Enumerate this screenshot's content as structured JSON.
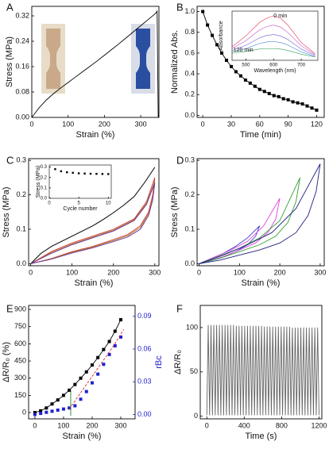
{
  "chart_data": [
    {
      "type": "line",
      "label": "A",
      "xlabel": "Strain (%)",
      "ylabel": "Stress (MPa)",
      "xlim": [
        0,
        350
      ],
      "ylim": [
        0,
        0.35
      ],
      "xticks": [
        0,
        100,
        200,
        300
      ],
      "yticks": [
        {
          "value": 0,
          "label": "0.00"
        },
        0.08,
        0.16,
        0.24,
        0.32
      ],
      "series": [
        {
          "color": "#000000",
          "x": [
            0,
            20,
            40,
            60,
            80,
            100,
            120,
            140,
            160,
            180,
            200,
            220,
            240,
            260,
            280,
            300,
            320,
            340,
            345,
            348
          ],
          "values": [
            0,
            0.03,
            0.055,
            0.075,
            0.093,
            0.11,
            0.127,
            0.144,
            0.161,
            0.178,
            0.196,
            0.214,
            0.232,
            0.251,
            0.27,
            0.289,
            0.308,
            0.327,
            0.335,
            0
          ]
        }
      ]
    },
    {
      "type": "line",
      "label": "B",
      "xlabel": "Time (min)",
      "ylabel": "Normalized Abs.",
      "xlim": [
        -6,
        128
      ],
      "ylim": [
        -0.02,
        1.05
      ],
      "xticks": [
        0,
        30,
        60,
        90,
        120
      ],
      "yticks": [
        {
          "value": 0,
          "label": "0.0"
        },
        0.2,
        0.4,
        0.6,
        0.8,
        {
          "value": 1,
          "label": "1.0"
        }
      ],
      "series": [
        {
          "color": "#000000",
          "marker": "square",
          "x": [
            0,
            5,
            10,
            15,
            20,
            25,
            30,
            35,
            40,
            45,
            50,
            55,
            60,
            65,
            70,
            75,
            80,
            85,
            90,
            95,
            100,
            105,
            110,
            115,
            120
          ],
          "values": [
            1.0,
            0.87,
            0.77,
            0.68,
            0.6,
            0.53,
            0.47,
            0.42,
            0.38,
            0.34,
            0.31,
            0.28,
            0.25,
            0.23,
            0.21,
            0.19,
            0.18,
            0.16,
            0.15,
            0.13,
            0.12,
            0.11,
            0.09,
            0.07,
            0.05
          ]
        }
      ],
      "inset": {
        "xlabel": "Wavelength (nm)",
        "ylabel": "Absorbance",
        "xlim": [
          450,
          760
        ],
        "ylim": [
          0,
          1.05
        ],
        "xticks": [
          500,
          600,
          700
        ],
        "yticks": [],
        "annotations": [
          "0 min",
          "120 min"
        ],
        "series": [
          {
            "color": "#e03050",
            "x": [
              450,
              500,
              550,
              575,
              600,
              625,
              650,
              700,
              750
            ],
            "values": [
              0.29,
              0.52,
              0.81,
              0.9,
              0.95,
              0.9,
              0.76,
              0.38,
              0.14
            ]
          },
          {
            "color": "#c050c0",
            "x": [
              450,
              500,
              550,
              575,
              600,
              625,
              650,
              700,
              750
            ],
            "values": [
              0.25,
              0.42,
              0.65,
              0.72,
              0.75,
              0.71,
              0.6,
              0.31,
              0.12
            ]
          },
          {
            "color": "#7060d0",
            "x": [
              450,
              500,
              550,
              575,
              600,
              625,
              650,
              700,
              750
            ],
            "values": [
              0.21,
              0.32,
              0.48,
              0.53,
              0.55,
              0.52,
              0.45,
              0.24,
              0.1
            ]
          },
          {
            "color": "#3a80d0",
            "x": [
              450,
              500,
              550,
              575,
              600,
              625,
              650,
              700,
              750
            ],
            "values": [
              0.18,
              0.25,
              0.36,
              0.39,
              0.4,
              0.38,
              0.33,
              0.18,
              0.08
            ]
          },
          {
            "color": "#30a050",
            "x": [
              450,
              500,
              550,
              575,
              600,
              625,
              650,
              700,
              750
            ],
            "values": [
              0.15,
              0.19,
              0.24,
              0.25,
              0.25,
              0.24,
              0.21,
              0.13,
              0.07
            ]
          }
        ]
      }
    },
    {
      "type": "line",
      "label": "C",
      "xlabel": "Strain (%)",
      "ylabel": "Stress (MPa)",
      "xlim": [
        -5,
        310
      ],
      "ylim": [
        -0.006,
        0.305
      ],
      "xticks": [
        0,
        100,
        200,
        300
      ],
      "yticks": [
        {
          "value": 0,
          "label": "0.0"
        },
        0.1,
        0.2,
        0.3
      ],
      "series": [
        {
          "color": "#000000",
          "x": [
            0,
            25,
            50,
            75,
            100,
            125,
            150,
            175,
            200,
            225,
            250,
            275,
            300
          ],
          "values": [
            0,
            0.03,
            0.05,
            0.065,
            0.08,
            0.095,
            0.11,
            0.128,
            0.148,
            0.17,
            0.195,
            0.235,
            0.28
          ]
        },
        {
          "color": "#d03030",
          "x": [
            0,
            50,
            100,
            150,
            200,
            250,
            280,
            300,
            295,
            285,
            265,
            235,
            200,
            150,
            100,
            50,
            0
          ],
          "values": [
            0,
            0.035,
            0.06,
            0.08,
            0.1,
            0.13,
            0.18,
            0.25,
            0.2,
            0.15,
            0.11,
            0.085,
            0.07,
            0.05,
            0.035,
            0.015,
            0
          ]
        },
        {
          "color": "#a08020",
          "x": [
            0,
            50,
            100,
            150,
            200,
            250,
            280,
            300,
            295,
            285,
            265,
            235,
            200,
            150,
            100,
            50,
            0
          ],
          "values": [
            0,
            0.032,
            0.057,
            0.077,
            0.097,
            0.127,
            0.175,
            0.24,
            0.19,
            0.145,
            0.105,
            0.082,
            0.067,
            0.048,
            0.033,
            0.014,
            0
          ]
        },
        {
          "color": "#7030a0",
          "x": [
            0,
            50,
            100,
            150,
            200,
            250,
            280,
            300,
            295,
            285,
            265,
            235,
            200,
            150,
            100,
            50,
            0
          ],
          "values": [
            0,
            0.03,
            0.055,
            0.075,
            0.095,
            0.125,
            0.172,
            0.235,
            0.185,
            0.14,
            0.1,
            0.078,
            0.064,
            0.046,
            0.031,
            0.013,
            0
          ]
        }
      ],
      "inset": {
        "xlabel": "Cycle number",
        "ylabel": "Stress (MPa)",
        "xlim": [
          0,
          10.5
        ],
        "ylim": [
          0,
          0.32
        ],
        "xticks": [
          0,
          5,
          10
        ],
        "yticks": [
          {
            "value": 0,
            "label": "0.0"
          },
          0.1,
          0.2,
          0.3
        ],
        "series": [
          {
            "color": "#000000",
            "marker": "square",
            "line": false,
            "x": [
              1,
              2,
              3,
              4,
              5,
              6,
              7,
              8,
              9,
              10
            ],
            "values": [
              0.28,
              0.26,
              0.25,
              0.245,
              0.24,
              0.238,
              0.236,
              0.235,
              0.234,
              0.233
            ]
          }
        ]
      }
    },
    {
      "type": "line",
      "label": "D",
      "xlabel": "Strain (%)",
      "ylabel": "Stress (MPa)",
      "xlim": [
        -5,
        310
      ],
      "ylim": [
        -0.006,
        0.305
      ],
      "xticks": [
        0,
        100,
        200,
        300
      ],
      "yticks": [
        {
          "value": 0,
          "label": "0.0"
        },
        0.1,
        0.2,
        0.3
      ],
      "series": [
        {
          "color": "#3a3ad0",
          "x": [
            0,
            30,
            60,
            90,
            120,
            150,
            140,
            120,
            90,
            60,
            30,
            0
          ],
          "values": [
            0,
            0.015,
            0.03,
            0.05,
            0.075,
            0.11,
            0.08,
            0.055,
            0.035,
            0.02,
            0.01,
            0
          ]
        },
        {
          "color": "#e040e0",
          "x": [
            0,
            40,
            80,
            120,
            160,
            200,
            190,
            170,
            140,
            100,
            60,
            20,
            0
          ],
          "values": [
            0,
            0.02,
            0.04,
            0.065,
            0.11,
            0.19,
            0.13,
            0.09,
            0.06,
            0.04,
            0.02,
            0.005,
            0
          ]
        },
        {
          "color": "#30a030",
          "x": [
            0,
            50,
            100,
            150,
            200,
            250,
            240,
            220,
            190,
            150,
            100,
            50,
            0
          ],
          "values": [
            0,
            0.022,
            0.045,
            0.075,
            0.125,
            0.25,
            0.18,
            0.12,
            0.08,
            0.055,
            0.035,
            0.015,
            0
          ]
        },
        {
          "color": "#202080",
          "x": [
            0,
            60,
            120,
            180,
            240,
            300,
            290,
            270,
            240,
            200,
            150,
            100,
            50,
            0
          ],
          "values": [
            0,
            0.025,
            0.055,
            0.09,
            0.16,
            0.29,
            0.21,
            0.14,
            0.09,
            0.06,
            0.04,
            0.025,
            0.01,
            0
          ]
        }
      ]
    },
    {
      "type": "line",
      "label": "E",
      "xlabel": "Strain (%)",
      "ylabel": "ΔR/R₀ (%)",
      "y2label": "rBc",
      "y2color": "#2020d0",
      "xlim": [
        -22,
        350
      ],
      "ylim": [
        -55,
        935
      ],
      "xticks": [
        0,
        100,
        200,
        300
      ],
      "yticks": [
        0,
        150,
        300,
        450,
        600,
        750,
        900
      ],
      "y2lim": [
        -0.004,
        0.1
      ],
      "y2ticks": [
        {
          "value": 0,
          "label": "0.00"
        },
        0.03,
        0.06,
        0.09
      ],
      "vline": {
        "x": 125,
        "color": "#2a9a2a"
      },
      "series": [
        {
          "color": "#000000",
          "marker": "square",
          "x": [
            0,
            20,
            40,
            60,
            80,
            100,
            120,
            140,
            160,
            180,
            200,
            220,
            240,
            260,
            280,
            300
          ],
          "values": [
            0,
            15,
            40,
            75,
            110,
            150,
            195,
            245,
            300,
            355,
            415,
            480,
            550,
            620,
            710,
            810
          ]
        },
        {
          "color": "#2020d0",
          "marker": "square",
          "line": false,
          "axis": "y2",
          "x": [
            0,
            20,
            40,
            60,
            80,
            100,
            120,
            140,
            160,
            180,
            200,
            220,
            240,
            260,
            280,
            300
          ],
          "values": [
            0,
            0.001,
            0.002,
            0.003,
            0.004,
            0.005,
            0.006,
            0.008,
            0.014,
            0.021,
            0.029,
            0.037,
            0.046,
            0.055,
            0.063,
            0.071
          ]
        },
        {
          "color": "#e02020",
          "dash": true,
          "axis": "y2",
          "x": [
            120,
            160,
            200,
            240,
            280,
            310
          ],
          "values": [
            0.005,
            0.02,
            0.035,
            0.05,
            0.065,
            0.078
          ]
        }
      ]
    },
    {
      "type": "line",
      "label": "F",
      "xlabel": "Time (s)",
      "ylabel": "ΔR/R₀",
      "xlim": [
        -70,
        1230
      ],
      "ylim": [
        -3,
        125
      ],
      "xticks": [
        0,
        400,
        800,
        1200
      ],
      "yticks": [
        0,
        50,
        100
      ],
      "series": [
        {
          "color": "#666666",
          "x": [
            0,
            15,
            30,
            45,
            60,
            75,
            90,
            105,
            120,
            135,
            150,
            165,
            180,
            195,
            210,
            225,
            240,
            255,
            270,
            285,
            300,
            315,
            330,
            345,
            360,
            375,
            390,
            405,
            420,
            435,
            450,
            465,
            480,
            495,
            510,
            525,
            540,
            555,
            570,
            585,
            600,
            615,
            630,
            645,
            660,
            675,
            690,
            705,
            720,
            735,
            750,
            765,
            780,
            795,
            810,
            825,
            840,
            855,
            870,
            885,
            900,
            915,
            930,
            945,
            960,
            975,
            990,
            1005,
            1020,
            1035,
            1050,
            1065,
            1080,
            1095,
            1110,
            1125,
            1140,
            1155,
            1170,
            1185,
            1200
          ],
          "values": [
            1,
            103,
            1,
            103,
            1,
            103,
            1,
            103,
            1,
            103,
            1,
            103,
            1,
            103,
            1,
            103,
            1,
            103,
            1,
            103,
            1,
            102,
            1,
            102,
            1,
            102,
            1,
            102,
            1,
            102,
            1,
            102,
            1,
            102,
            1,
            102,
            1,
            102,
            1,
            102,
            1,
            101,
            1,
            101,
            1,
            101,
            1,
            101,
            1,
            101,
            1,
            101,
            1,
            101,
            1,
            101,
            1,
            101,
            1,
            101,
            1,
            100,
            1,
            100,
            1,
            100,
            1,
            100,
            1,
            100,
            1,
            100,
            1,
            100,
            1,
            100,
            1,
            100,
            1,
            100,
            1
          ]
        }
      ]
    }
  ]
}
